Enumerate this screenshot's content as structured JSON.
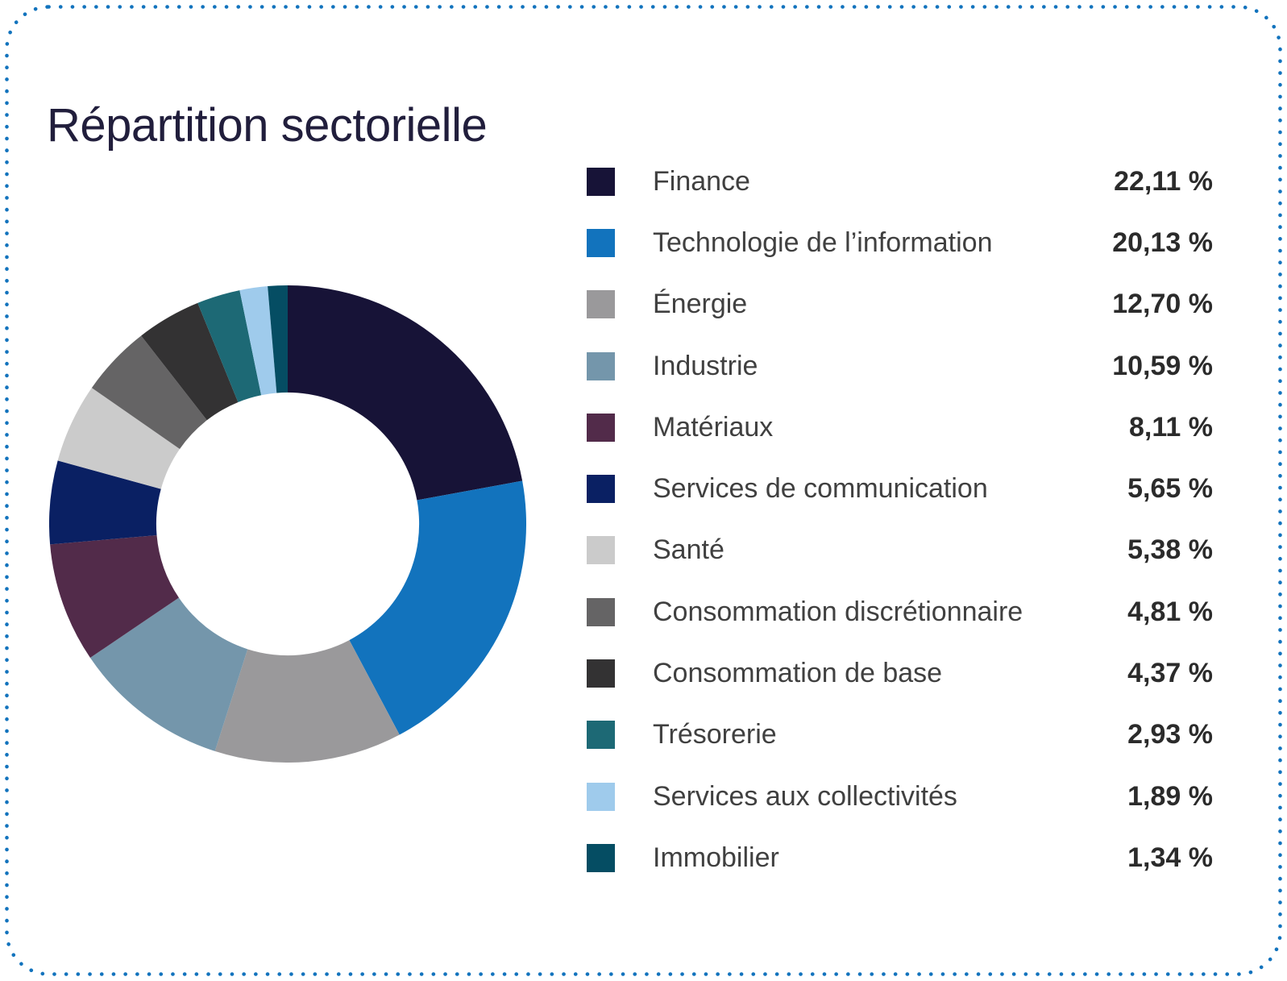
{
  "page": {
    "background_color": "#ffffff",
    "border_color": "#1273bd",
    "border_style": "dotted-rounded-rectangle"
  },
  "title": {
    "text": "Répartition sectorielle",
    "color": "#211e3c"
  },
  "chart_data": {
    "type": "pie",
    "title": "Répartition sectorielle",
    "donut": true,
    "inner_radius_ratio": 0.551,
    "start_angle_deg": 0,
    "direction": "clockwise",
    "legend_position": "right",
    "categories": [
      "Finance",
      "Technologie de l’information",
      "Énergie",
      "Industrie",
      "Matériaux",
      "Services de communication",
      "Santé",
      "Consommation discrétionnaire",
      "Consommation de base",
      "Trésorerie",
      "Services aux collectivités",
      "Immobilier"
    ],
    "values": [
      22.11,
      20.13,
      12.7,
      10.59,
      8.11,
      5.65,
      5.38,
      4.81,
      4.37,
      2.93,
      1.89,
      1.34
    ],
    "display_values": [
      "22,11 %",
      "20,13 %",
      "12,70 %",
      "10,59 %",
      "8,11 %",
      "5,65 %",
      "5,38 %",
      "4,81 %",
      "4,37 %",
      "2,93 %",
      "1,89 %",
      "1,34 %"
    ],
    "colors": [
      "#171337",
      "#1273bd",
      "#9a999b",
      "#7496ab",
      "#522b4a",
      "#0a2063",
      "#cbcbcb",
      "#656465",
      "#333233",
      "#1d6975",
      "#9fcbec",
      "#054d63"
    ]
  }
}
